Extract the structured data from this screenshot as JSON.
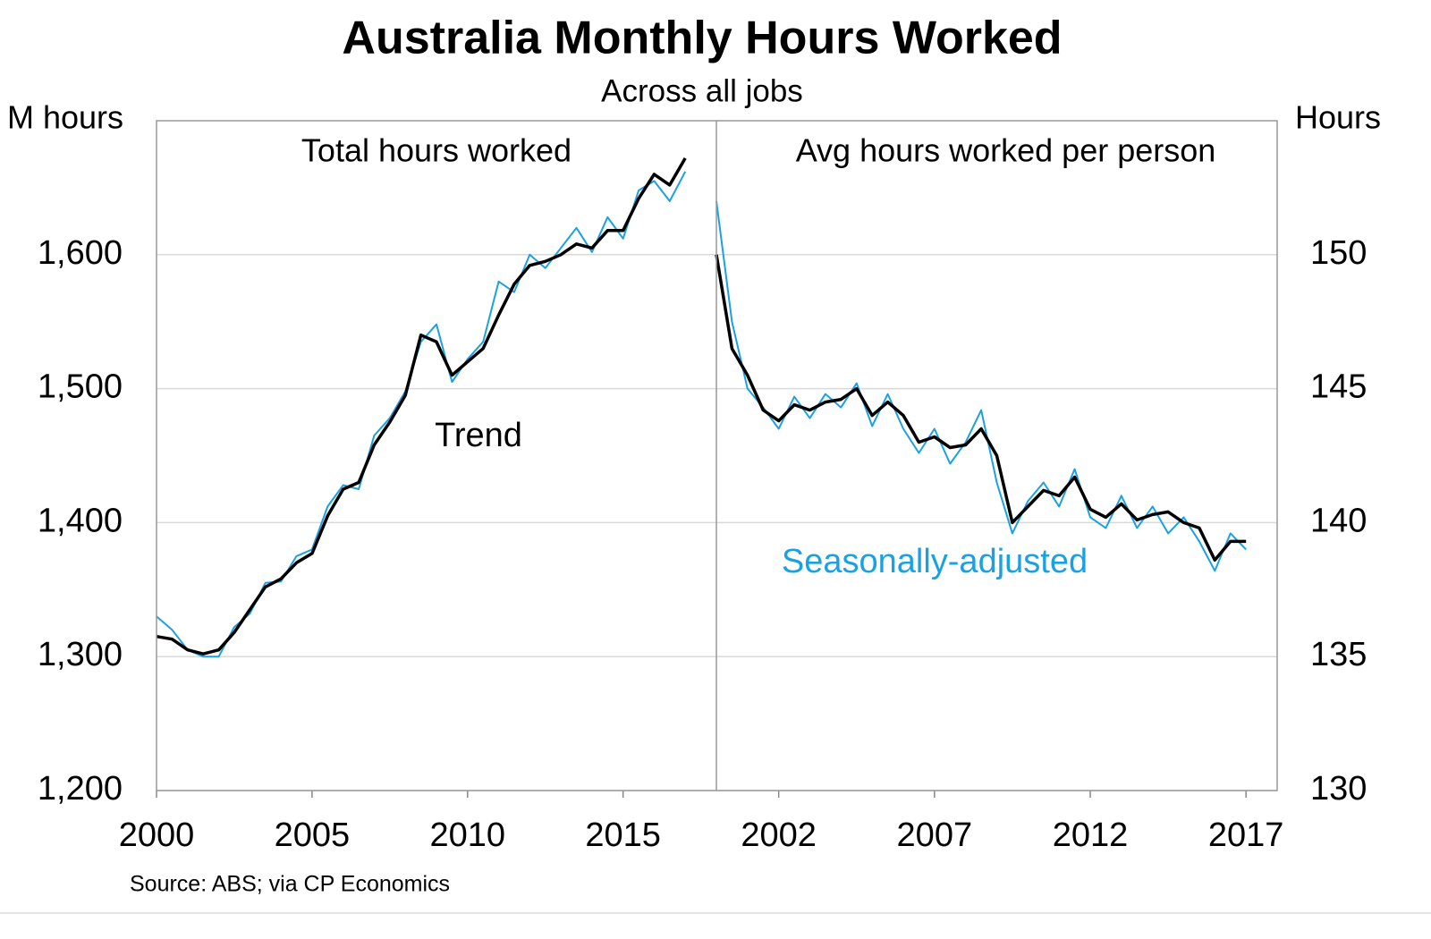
{
  "title": "Australia Monthly Hours Worked",
  "subtitle": "Across all jobs",
  "source": "Source: ABS; via CP Economics",
  "chart_data": [
    {
      "type": "line",
      "panel_title": "Total hours worked",
      "y_axis_title": "M hours",
      "axis_side": "left",
      "x": [
        2000,
        2000.5,
        2001,
        2001.5,
        2002,
        2002.5,
        2003,
        2003.5,
        2004,
        2004.5,
        2005,
        2005.5,
        2006,
        2006.5,
        2007,
        2007.5,
        2008,
        2008.5,
        2009,
        2009.5,
        2010,
        2010.5,
        2011,
        2011.5,
        2012,
        2012.5,
        2013,
        2013.5,
        2014,
        2014.5,
        2015,
        2015.5,
        2016,
        2016.5,
        2017
      ],
      "xlim": [
        2000,
        2018
      ],
      "xticks": [
        2000,
        2005,
        2010,
        2015
      ],
      "ylim": [
        1200,
        1700
      ],
      "yticks": [
        {
          "value": 1200,
          "label": "1,200"
        },
        {
          "value": 1300,
          "label": "1,300"
        },
        {
          "value": 1400,
          "label": "1,400"
        },
        {
          "value": 1500,
          "label": "1,500"
        },
        {
          "value": 1600,
          "label": "1,600"
        }
      ],
      "grid": true,
      "series": [
        {
          "color": "#1ba1e2",
          "values": [
            1330,
            1320,
            1305,
            1300,
            1300,
            1322,
            1332,
            1355,
            1356,
            1375,
            1380,
            1412,
            1428,
            1425,
            1465,
            1478,
            1498,
            1535,
            1548,
            1505,
            1522,
            1535,
            1580,
            1572,
            1600,
            1590,
            1605,
            1620,
            1602,
            1628,
            1612,
            1648,
            1655,
            1640,
            1662
          ]
        },
        {
          "name": "Trend",
          "color": "#000000",
          "values": [
            1315,
            1313,
            1305,
            1302,
            1305,
            1318,
            1335,
            1352,
            1358,
            1370,
            1377,
            1405,
            1425,
            1430,
            1458,
            1475,
            1495,
            1540,
            1535,
            1510,
            1520,
            1530,
            1555,
            1578,
            1592,
            1595,
            1600,
            1608,
            1605,
            1618,
            1618,
            1642,
            1660,
            1652,
            1672
          ]
        }
      ]
    },
    {
      "type": "line",
      "panel_title": "Avg hours worked per person",
      "y_axis_title": "Hours",
      "axis_side": "right",
      "x": [
        2000,
        2000.5,
        2001,
        2001.5,
        2002,
        2002.5,
        2003,
        2003.5,
        2004,
        2004.5,
        2005,
        2005.5,
        2006,
        2006.5,
        2007,
        2007.5,
        2008,
        2008.5,
        2009,
        2009.5,
        2010,
        2010.5,
        2011,
        2011.5,
        2012,
        2012.5,
        2013,
        2013.5,
        2014,
        2014.5,
        2015,
        2015.5,
        2016,
        2016.5,
        2017
      ],
      "xlim": [
        2000,
        2018
      ],
      "xticks": [
        2002,
        2007,
        2012,
        2017
      ],
      "ylim": [
        130,
        155
      ],
      "yticks": [
        130,
        135,
        140,
        145,
        150
      ],
      "grid": true,
      "series": [
        {
          "name": "Seasonally-adjusted",
          "color": "#1ba1e2",
          "values": [
            152,
            147.5,
            145,
            144.3,
            143.5,
            144.7,
            143.9,
            144.8,
            144.3,
            145.2,
            143.6,
            144.8,
            143.5,
            142.6,
            143.5,
            142.2,
            143,
            144.2,
            141.5,
            139.6,
            140.8,
            141.5,
            140.6,
            142,
            140.2,
            139.8,
            141,
            139.8,
            140.6,
            139.6,
            140.2,
            139.3,
            138.2,
            139.6,
            139
          ]
        },
        {
          "color": "#000000",
          "values": [
            150,
            146.5,
            145.5,
            144.2,
            143.8,
            144.4,
            144.2,
            144.5,
            144.6,
            145,
            144,
            144.5,
            144,
            143,
            143.2,
            142.8,
            142.9,
            143.5,
            142.5,
            140,
            140.6,
            141.2,
            141,
            141.7,
            140.5,
            140.2,
            140.7,
            140.1,
            140.3,
            140.4,
            140,
            139.8,
            138.6,
            139.3,
            139.3
          ]
        }
      ]
    }
  ]
}
